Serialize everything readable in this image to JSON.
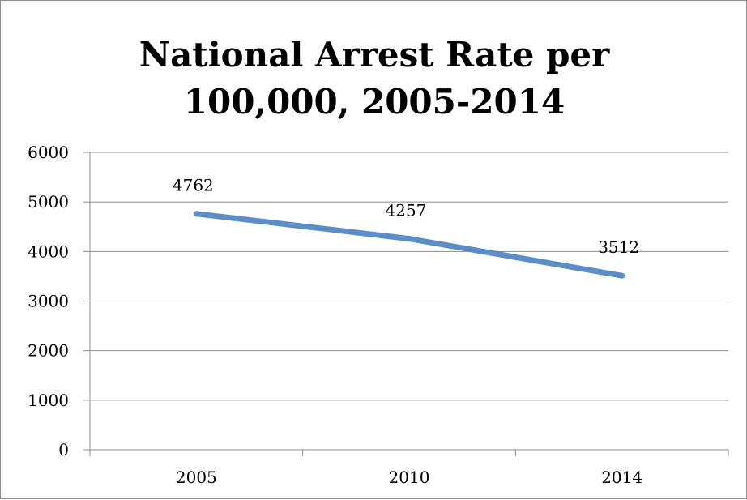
{
  "chart_data": {
    "type": "line",
    "title": [
      "National Arrest Rate per",
      "100,000, 2005-2014"
    ],
    "categories": [
      "2005",
      "2010",
      "2014"
    ],
    "series": [
      {
        "values": [
          4762,
          4257,
          3512
        ],
        "color": "#5b8ec7"
      }
    ],
    "data_labels": [
      "4762",
      "4257",
      "3512"
    ],
    "y_ticks": [
      "0",
      "1000",
      "2000",
      "3000",
      "4000",
      "5000",
      "6000"
    ],
    "ylim": [
      0,
      6000
    ],
    "grid": true,
    "legend": "none"
  }
}
